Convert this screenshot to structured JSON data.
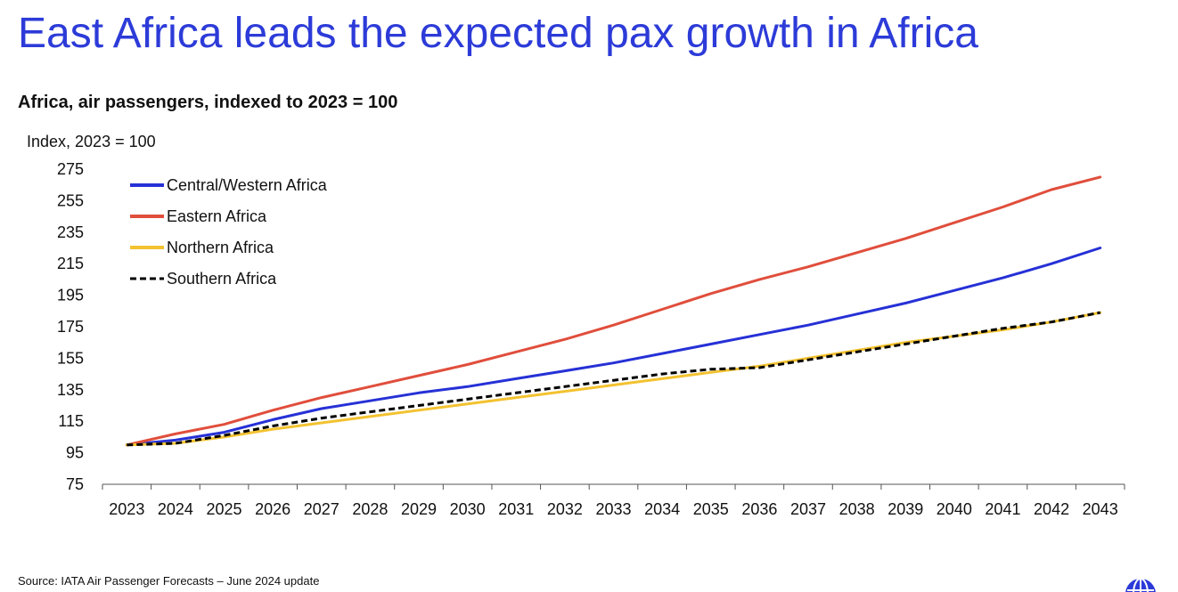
{
  "page": {
    "headline": "East Africa leads the expected pax growth in Africa",
    "subtitle": "Africa, air passengers, indexed to 2023 = 100",
    "source": "Source: IATA Air Passenger Forecasts – June 2024 update",
    "logo_icon": "globe-icon"
  },
  "colors": {
    "headline": "#2c3bd8",
    "central_western": "#2631d6",
    "eastern": "#e04e3c",
    "northern": "#f3c230",
    "southern": "#000000"
  },
  "chart_data": {
    "type": "line",
    "title": "Africa, air passengers, indexed to 2023 = 100",
    "ylabel": "Index, 2023 = 100",
    "xlabel": "",
    "ylim": [
      75,
      275
    ],
    "yticks": [
      75,
      95,
      115,
      135,
      155,
      175,
      195,
      215,
      235,
      255,
      275
    ],
    "x": [
      "2023",
      "2024",
      "2025",
      "2026",
      "2027",
      "2028",
      "2029",
      "2030",
      "2031",
      "2032",
      "2033",
      "2034",
      "2035",
      "2036",
      "2037",
      "2038",
      "2039",
      "2040",
      "2041",
      "2042",
      "2043"
    ],
    "grid": false,
    "legend_position": "top-left",
    "series": [
      {
        "name": "Central/Western Africa",
        "color": "#2631d6",
        "dash": false,
        "values": [
          100,
          103,
          108,
          116,
          123,
          128,
          133,
          137,
          142,
          147,
          152,
          158,
          164,
          170,
          176,
          183,
          190,
          198,
          206,
          215,
          225
        ]
      },
      {
        "name": "Eastern Africa",
        "color": "#e04e3c",
        "dash": false,
        "values": [
          100,
          107,
          113,
          122,
          130,
          137,
          144,
          151,
          159,
          167,
          176,
          186,
          196,
          205,
          213,
          222,
          231,
          241,
          251,
          262,
          270
        ]
      },
      {
        "name": "Northern Africa",
        "color": "#f3c230",
        "dash": false,
        "values": [
          100,
          101,
          105,
          110,
          114,
          118,
          122,
          126,
          130,
          134,
          138,
          142,
          146,
          150,
          155,
          160,
          165,
          169,
          173,
          178,
          184
        ]
      },
      {
        "name": "Southern Africa",
        "color": "#000000",
        "dash": true,
        "values": [
          100,
          101,
          106,
          112,
          117,
          121,
          125,
          129,
          133,
          137,
          141,
          145,
          148,
          149,
          154,
          159,
          164,
          169,
          174,
          178,
          184
        ]
      }
    ]
  }
}
